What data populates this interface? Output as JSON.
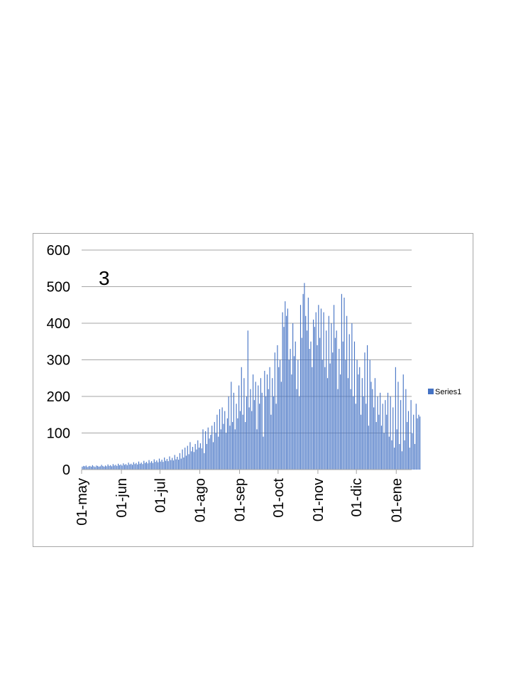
{
  "chart_data": {
    "type": "bar",
    "annotation": "3",
    "x_start": "2020-05-01",
    "x_end": "2021-01-12",
    "ylim": [
      0,
      600
    ],
    "yticks": [
      0,
      100,
      200,
      300,
      400,
      500,
      600
    ],
    "xtick_labels": [
      "01-may",
      "01-jun",
      "01-jul",
      "01-ago",
      "01-sep",
      "01-oct",
      "01-nov",
      "01-dic",
      "01-ene"
    ],
    "grid": true,
    "legend_position": "right",
    "bar_color": "#4472c4",
    "series": [
      {
        "name": "Series1",
        "values": [
          8,
          10,
          9,
          11,
          7,
          9,
          10,
          8,
          12,
          9,
          7,
          11,
          10,
          8,
          9,
          13,
          10,
          8,
          11,
          9,
          14,
          10,
          12,
          9,
          15,
          11,
          13,
          10,
          16,
          12,
          14,
          11,
          17,
          13,
          15,
          12,
          19,
          14,
          16,
          13,
          20,
          15,
          18,
          14,
          22,
          16,
          19,
          15,
          24,
          18,
          21,
          17,
          26,
          19,
          23,
          18,
          28,
          21,
          25,
          20,
          30,
          22,
          27,
          21,
          33,
          24,
          29,
          23,
          36,
          26,
          32,
          25,
          40,
          28,
          35,
          27,
          45,
          30,
          55,
          33,
          60,
          38,
          65,
          42,
          75,
          50,
          62,
          48,
          70,
          55,
          80,
          60,
          72,
          58,
          110,
          45,
          105,
          70,
          115,
          85,
          95,
          120,
          75,
          130,
          100,
          150,
          90,
          165,
          110,
          170,
          125,
          160,
          100,
          140,
          200,
          120,
          240,
          130,
          210,
          110,
          180,
          140,
          230,
          160,
          280,
          150,
          250,
          130,
          200,
          380,
          170,
          220,
          160,
          260,
          190,
          240,
          110,
          230,
          180,
          250,
          210,
          90,
          270,
          200,
          260,
          220,
          280,
          150,
          250,
          200,
          320,
          180,
          340,
          280,
          300,
          240,
          430,
          390,
          460,
          420,
          440,
          300,
          330,
          260,
          400,
          310,
          350,
          220,
          300,
          200,
          450,
          360,
          480,
          510,
          420,
          380,
          470,
          330,
          350,
          280,
          410,
          390,
          430,
          340,
          450,
          360,
          440,
          300,
          430,
          280,
          380,
          250,
          420,
          290,
          400,
          320,
          450,
          360,
          380,
          220,
          330,
          260,
          480,
          350,
          470,
          300,
          420,
          250,
          370,
          220,
          400,
          200,
          350,
          180,
          300,
          260,
          280,
          150,
          250,
          200,
          320,
          180,
          340,
          120,
          300,
          240,
          220,
          170,
          250,
          130,
          200,
          150,
          210,
          120,
          180,
          100,
          190,
          150,
          210,
          90,
          200,
          80,
          170,
          60,
          280,
          110,
          240,
          70,
          190,
          50,
          260,
          80,
          220,
          130,
          160,
          60,
          190,
          100,
          150,
          70,
          180,
          140,
          150,
          145
        ]
      }
    ]
  }
}
